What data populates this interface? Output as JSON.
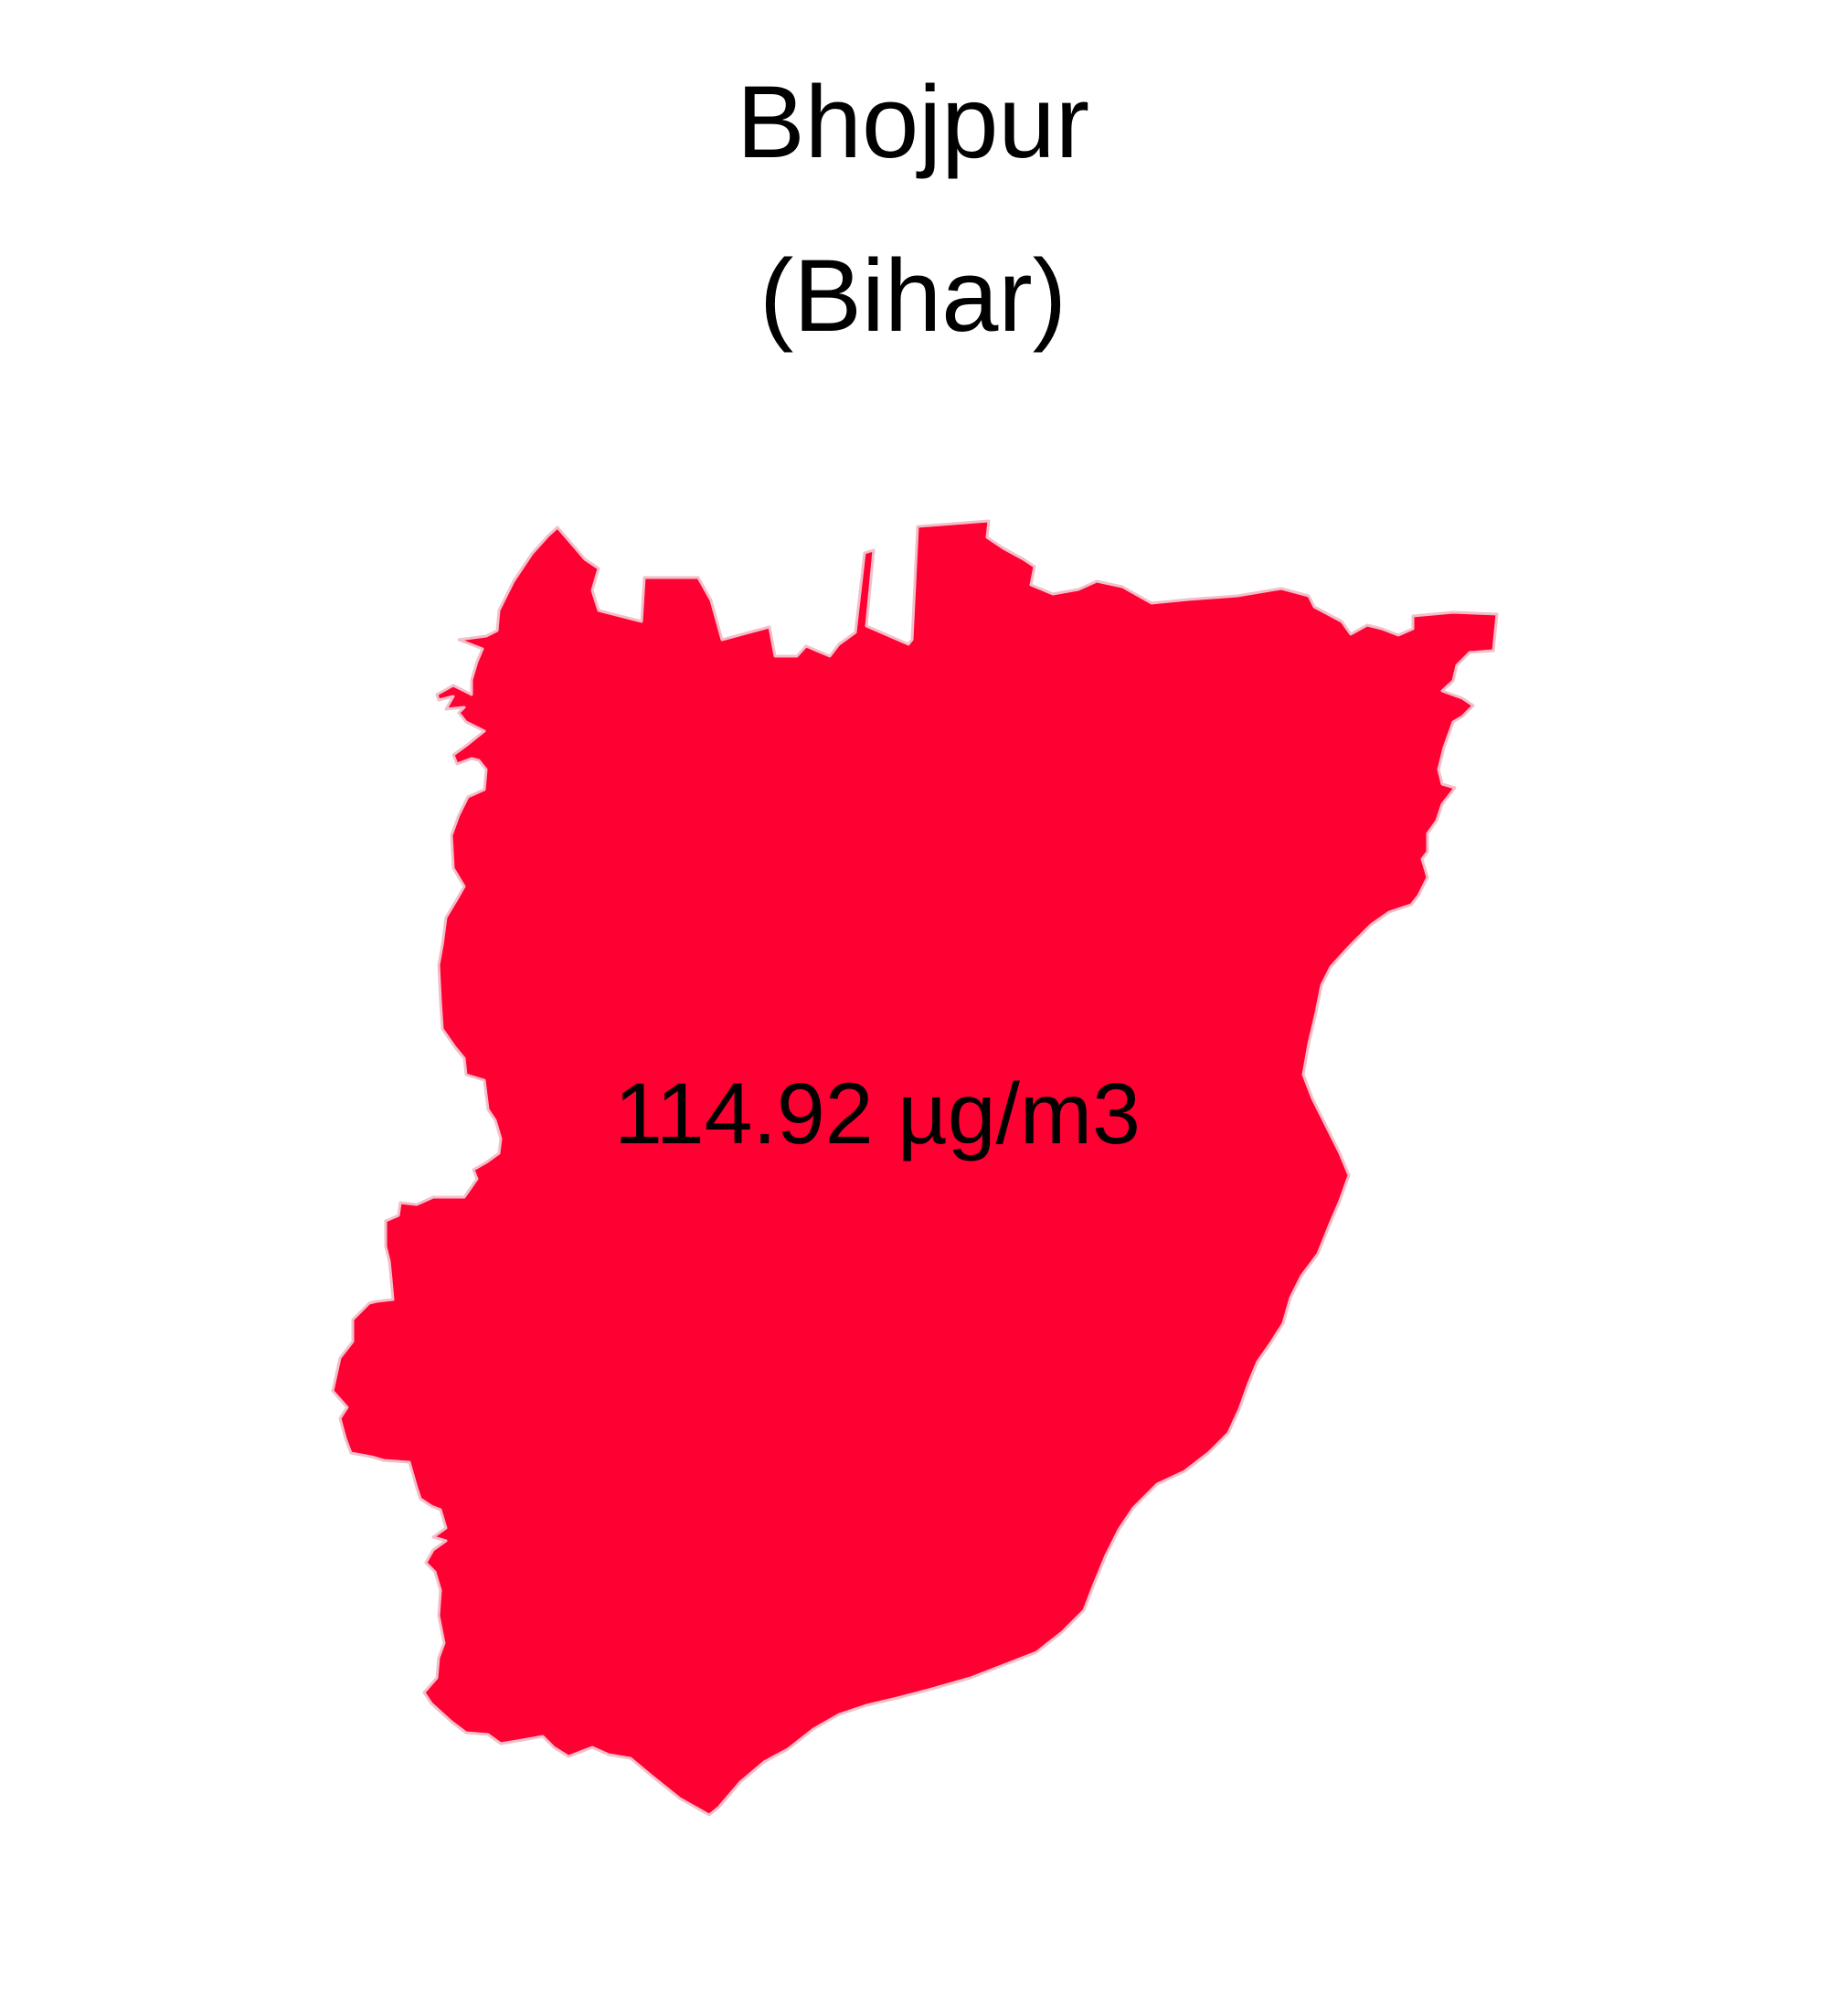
{
  "title": {
    "district": "Bhojpur",
    "state": "(Bihar)"
  },
  "region": {
    "value_label": "114.92 µg/m3",
    "fill_color": "#FF0033",
    "border_color": "#F2BFC9"
  }
}
